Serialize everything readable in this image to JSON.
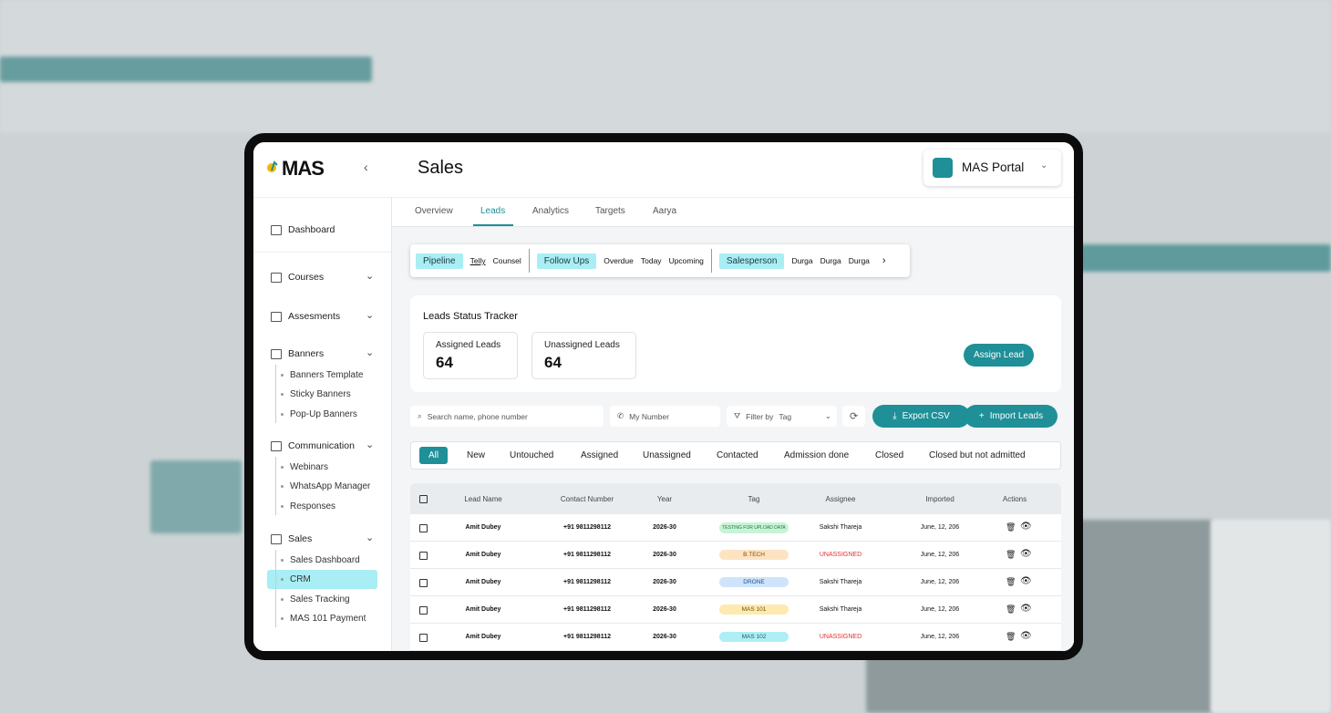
{
  "logo": "MAS",
  "header": {
    "title": "Sales",
    "portal": "MAS Portal"
  },
  "sidebar": {
    "items": [
      {
        "label": "Dashboard"
      },
      {
        "label": "Courses"
      },
      {
        "label": "Assesments"
      },
      {
        "label": "Banners",
        "children": [
          "Banners Template",
          "Sticky Banners",
          "Pop-Up Banners"
        ]
      },
      {
        "label": "Communication",
        "children": [
          "Webinars",
          "WhatsApp Manager",
          "Responses"
        ]
      },
      {
        "label": "Sales",
        "children": [
          "Sales Dashboard",
          "CRM",
          "Sales Tracking",
          "MAS 101 Payment"
        ]
      }
    ]
  },
  "tabs": [
    "Overview",
    "Leads",
    "Analytics",
    "Targets",
    "Aarya"
  ],
  "pipeline": [
    {
      "label": "Pipeline",
      "options": [
        "Telly",
        "Counsel"
      ]
    },
    {
      "label": "Follow Ups",
      "options": [
        "Overdue",
        "Today",
        "Upcoming"
      ]
    },
    {
      "label": "Salesperson",
      "options": [
        "Durga",
        "Durga",
        "Durga"
      ]
    }
  ],
  "tracker": {
    "title": "Leads Status Tracker",
    "cards": [
      {
        "label": "Assigned Leads",
        "value": 64
      },
      {
        "label": "Unassigned Leads",
        "value": 64
      }
    ],
    "button": "Assign Lead"
  },
  "toolbar": {
    "search": "Search name, phone number",
    "number": "My Number",
    "filter": "Filter by",
    "filter_value": "Tag",
    "export": "Export CSV",
    "import": "Import Leads"
  },
  "filters": [
    "All",
    "New",
    "Untouched",
    "Assigned",
    "Unassigned",
    "Contacted",
    "Admission done",
    "Closed",
    "Closed but not admitted"
  ],
  "table": {
    "columns": [
      "Lead Name",
      "Contact Number",
      "Year",
      "Tag",
      "Assignee",
      "Imported",
      "Actions"
    ],
    "rows": [
      [
        "Amit Dubey",
        "+91 9811298112",
        "2026-30",
        "TESTING FOR UPLOAD DATA",
        "Sakshi Thareja",
        "June, 12, 206"
      ],
      [
        "Amit Dubey",
        "+91 9811298112",
        "2026-30",
        "B.TECH",
        "UNASSIGNED",
        "June, 12, 206"
      ],
      [
        "Amit Dubey",
        "+91 9811298112",
        "2026-30",
        "DRONE",
        "Sakshi Thareja",
        "June, 12, 206"
      ],
      [
        "Amit Dubey",
        "+91 9811298112",
        "2026-30",
        "MAS 101",
        "Sakshi Thareja",
        "June, 12, 206"
      ],
      [
        "Amit Dubey",
        "+91 9811298112",
        "2026-30",
        "MAS 102",
        "UNASSIGNED",
        "June, 12, 206"
      ]
    ]
  }
}
